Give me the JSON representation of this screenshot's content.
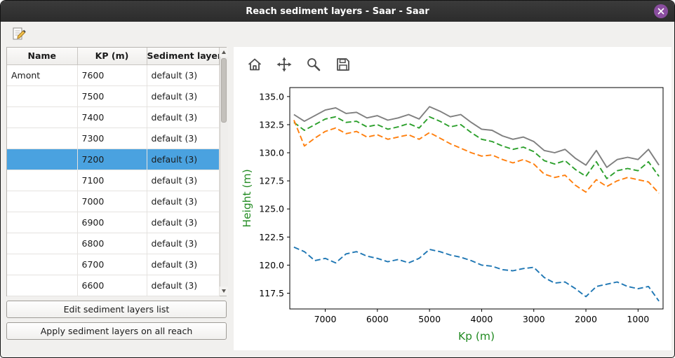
{
  "window": {
    "title": "Reach sediment layers - Saar - Saar"
  },
  "colors": {
    "selection_blue": "#4aa2e0",
    "close_button_purple": "#8a4d9f",
    "axis_label_green": "#228b22"
  },
  "main_toolbar": {
    "buttons": [
      {
        "icon": "edit-note-icon"
      }
    ]
  },
  "table": {
    "headers": [
      "Name",
      "KP (m)",
      "Sediment layers"
    ],
    "selected_kp": "7200",
    "rows": [
      {
        "name": "Amont",
        "kp": "7600",
        "layers": "default (3)"
      },
      {
        "name": "",
        "kp": "7500",
        "layers": "default (3)"
      },
      {
        "name": "",
        "kp": "7400",
        "layers": "default (3)"
      },
      {
        "name": "",
        "kp": "7300",
        "layers": "default (3)"
      },
      {
        "name": "",
        "kp": "7200",
        "layers": "default (3)"
      },
      {
        "name": "",
        "kp": "7100",
        "layers": "default (3)"
      },
      {
        "name": "",
        "kp": "7000",
        "layers": "default (3)"
      },
      {
        "name": "",
        "kp": "6900",
        "layers": "default (3)"
      },
      {
        "name": "",
        "kp": "6800",
        "layers": "default (3)"
      },
      {
        "name": "",
        "kp": "6700",
        "layers": "default (3)"
      },
      {
        "name": "",
        "kp": "6600",
        "layers": "default (3)"
      }
    ]
  },
  "buttons": {
    "edit_layers": "Edit sediment layers list",
    "apply_layers": "Apply sediment layers on all reach"
  },
  "plot_toolbar": {
    "buttons": [
      {
        "icon": "home-icon"
      },
      {
        "icon": "pan-arrows-icon"
      },
      {
        "icon": "zoom-magnifier-icon"
      },
      {
        "icon": "save-floppy-icon"
      }
    ]
  },
  "chart_data": {
    "type": "line",
    "title": "",
    "xlabel": "Kp (m)",
    "ylabel": "Height (m)",
    "axis_label_color": "#228b22",
    "x_axis_reversed": true,
    "xlim": [
      7680,
      520
    ],
    "ylim": [
      116.1,
      135.8
    ],
    "xticks": [
      7000,
      6000,
      5000,
      4000,
      3000,
      2000,
      1000
    ],
    "yticks": [
      117.5,
      120.0,
      122.5,
      125.0,
      127.5,
      130.0,
      132.5,
      135.0
    ],
    "grid": false,
    "legend": "none",
    "x": [
      7600,
      7400,
      7200,
      7000,
      6800,
      6600,
      6400,
      6200,
      6000,
      5800,
      5600,
      5400,
      5200,
      5000,
      4800,
      4600,
      4400,
      4200,
      4000,
      3800,
      3600,
      3400,
      3200,
      3000,
      2800,
      2600,
      2400,
      2200,
      2000,
      1800,
      1600,
      1400,
      1200,
      1000,
      800,
      600
    ],
    "series": [
      {
        "name": "gray-solid-top-line",
        "color": "#7f7f7f",
        "style": "solid",
        "values": [
          133.4,
          132.8,
          133.3,
          133.8,
          134.0,
          133.5,
          133.6,
          133.1,
          133.3,
          132.9,
          133.1,
          133.4,
          133.0,
          134.1,
          133.7,
          133.2,
          133.4,
          132.7,
          132.1,
          132.0,
          131.5,
          131.2,
          131.4,
          131.0,
          130.2,
          130.0,
          130.3,
          129.5,
          128.9,
          130.2,
          128.7,
          129.4,
          129.6,
          129.4,
          130.3,
          128.9
        ]
      },
      {
        "name": "green-dashed-line",
        "color": "#2ca02c",
        "style": "dashed",
        "values": [
          132.7,
          132.0,
          132.5,
          133.0,
          133.2,
          132.7,
          132.8,
          132.3,
          132.5,
          132.1,
          132.3,
          132.6,
          132.2,
          133.2,
          132.8,
          132.3,
          132.5,
          131.8,
          131.2,
          131.0,
          130.6,
          130.3,
          130.5,
          130.1,
          129.3,
          129.0,
          129.3,
          128.5,
          127.9,
          129.2,
          127.7,
          128.4,
          128.6,
          128.4,
          129.2,
          127.9
        ]
      },
      {
        "name": "orange-dashed-line",
        "color": "#ff7f0e",
        "style": "dashed",
        "values": [
          132.9,
          130.6,
          131.3,
          131.9,
          132.2,
          131.7,
          131.9,
          131.4,
          131.6,
          131.2,
          131.4,
          131.6,
          131.2,
          131.8,
          131.3,
          130.8,
          130.4,
          130.0,
          129.7,
          129.8,
          129.4,
          129.1,
          129.4,
          129.0,
          128.1,
          127.8,
          128.0,
          127.1,
          126.5,
          127.6,
          127.0,
          127.5,
          127.8,
          127.6,
          127.4,
          126.4
        ]
      },
      {
        "name": "blue-dashed-bottom-line",
        "color": "#1f77b4",
        "style": "dashed",
        "values": [
          121.6,
          121.2,
          120.4,
          120.6,
          120.2,
          121.0,
          121.2,
          120.8,
          120.6,
          120.3,
          120.5,
          120.2,
          120.6,
          121.4,
          121.2,
          120.9,
          120.7,
          120.4,
          120.0,
          119.9,
          119.6,
          119.5,
          119.7,
          119.8,
          118.9,
          118.4,
          118.5,
          117.9,
          117.2,
          118.1,
          118.3,
          118.5,
          118.1,
          117.9,
          118.1,
          116.8
        ]
      }
    ]
  }
}
